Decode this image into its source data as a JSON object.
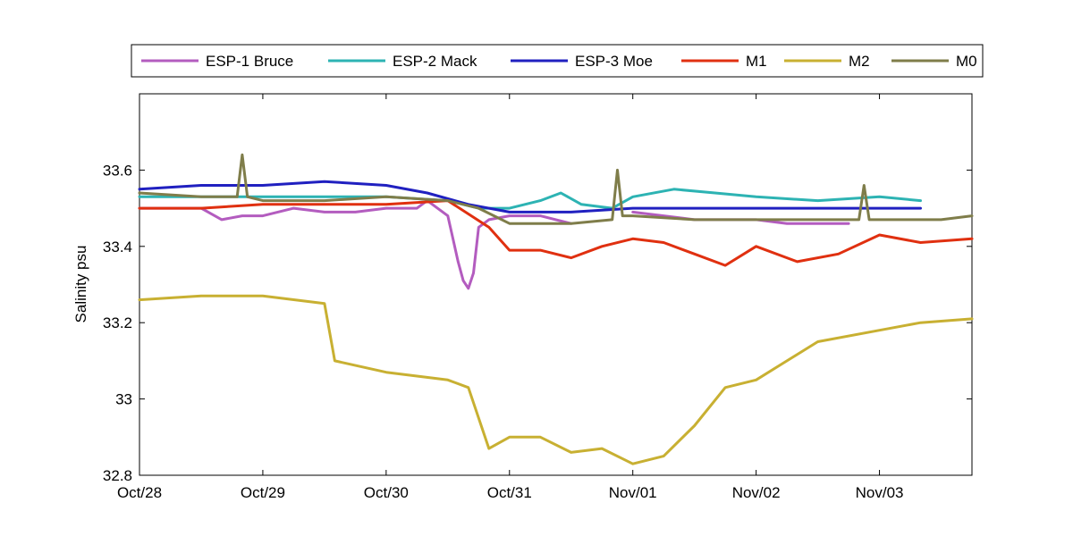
{
  "chart_data": {
    "type": "line",
    "title": "",
    "xlabel": "",
    "ylabel": "Salinity psu",
    "x_range": [
      "2010-10-28 00:00",
      "2010-11-03 18:00"
    ],
    "xticks": [
      {
        "x": "2010-10-28",
        "label": "Oct/28"
      },
      {
        "x": "2010-10-29",
        "label": "Oct/29"
      },
      {
        "x": "2010-10-30",
        "label": "Oct/30"
      },
      {
        "x": "2010-10-31",
        "label": "Oct/31"
      },
      {
        "x": "2010-11-01",
        "label": "Nov/01"
      },
      {
        "x": "2010-11-02",
        "label": "Nov/02"
      },
      {
        "x": "2010-11-03",
        "label": "Nov/03"
      }
    ],
    "ylim": [
      32.8,
      33.8
    ],
    "yticks": [
      {
        "y": 32.8,
        "label": "32.8"
      },
      {
        "y": 33.0,
        "label": "33"
      },
      {
        "y": 33.2,
        "label": "33.2"
      },
      {
        "y": 33.4,
        "label": "33.4"
      },
      {
        "y": 33.6,
        "label": "33.6"
      }
    ],
    "grid": false,
    "legend_position": "top, outside plot, horizontal",
    "series": [
      {
        "name": "ESP-1 Bruce",
        "color": "#b35cbf",
        "x": [
          "2010-10-28 00:00",
          "2010-10-28 12:00",
          "2010-10-28 16:00",
          "2010-10-28 20:00",
          "2010-10-29 00:00",
          "2010-10-29 06:00",
          "2010-10-29 12:00",
          "2010-10-29 18:00",
          "2010-10-30 00:00",
          "2010-10-30 06:00",
          "2010-10-30 08:00",
          "2010-10-30 12:00",
          "2010-10-30 13:00",
          "2010-10-30 14:00",
          "2010-10-30 15:00",
          "2010-10-30 16:00",
          "2010-10-30 17:00",
          "2010-10-30 18:00",
          "2010-10-30 20:00",
          "2010-10-31 00:00",
          "2010-10-31 06:00",
          "2010-10-31 12:00"
        ],
        "y": [
          33.5,
          33.5,
          33.47,
          33.48,
          33.48,
          33.5,
          33.49,
          33.49,
          33.5,
          33.5,
          33.52,
          33.48,
          33.42,
          33.36,
          33.31,
          33.29,
          33.33,
          33.45,
          33.47,
          33.48,
          33.48,
          33.46
        ]
      },
      {
        "name": "ESP-1 Bruce",
        "color": "#b35cbf",
        "x": [
          "2010-11-01 00:00",
          "2010-11-01 06:00",
          "2010-11-01 12:00",
          "2010-11-01 18:00",
          "2010-11-02 00:00",
          "2010-11-02 06:00",
          "2010-11-02 12:00",
          "2010-11-02 18:00"
        ],
        "y": [
          33.49,
          33.48,
          33.47,
          33.47,
          33.47,
          33.46,
          33.46,
          33.46
        ]
      },
      {
        "name": "ESP-2 Mack",
        "color": "#2db3b3",
        "x": [
          "2010-10-28 00:00",
          "2010-10-28 12:00",
          "2010-10-29 00:00",
          "2010-10-29 12:00",
          "2010-10-30 00:00",
          "2010-10-30 12:00",
          "2010-10-30 18:00",
          "2010-10-31 00:00",
          "2010-10-31 06:00",
          "2010-10-31 10:00",
          "2010-10-31 14:00",
          "2010-10-31 20:00",
          "2010-11-01 00:00",
          "2010-11-01 08:00",
          "2010-11-01 16:00",
          "2010-11-02 00:00",
          "2010-11-02 12:00",
          "2010-11-03 00:00",
          "2010-11-03 08:00"
        ],
        "y": [
          33.53,
          33.53,
          33.53,
          33.53,
          33.53,
          33.52,
          33.5,
          33.5,
          33.52,
          33.54,
          33.51,
          33.5,
          33.53,
          33.55,
          33.54,
          33.53,
          33.52,
          33.53,
          33.52
        ]
      },
      {
        "name": "ESP-3 Moe",
        "color": "#2020c0",
        "x": [
          "2010-10-28 00:00",
          "2010-10-28 12:00",
          "2010-10-29 00:00",
          "2010-10-29 12:00",
          "2010-10-30 00:00",
          "2010-10-30 08:00",
          "2010-10-30 16:00",
          "2010-10-31 00:00",
          "2010-10-31 12:00",
          "2010-11-01 00:00",
          "2010-11-01 12:00",
          "2010-11-02 00:00",
          "2010-11-02 12:00",
          "2010-11-03 00:00",
          "2010-11-03 08:00"
        ],
        "y": [
          33.55,
          33.56,
          33.56,
          33.57,
          33.56,
          33.54,
          33.51,
          33.49,
          33.49,
          33.5,
          33.5,
          33.5,
          33.5,
          33.5,
          33.5
        ]
      },
      {
        "name": "M1",
        "color": "#e03010",
        "x": [
          "2010-10-28 00:00",
          "2010-10-28 12:00",
          "2010-10-29 00:00",
          "2010-10-29 12:00",
          "2010-10-30 00:00",
          "2010-10-30 12:00",
          "2010-10-30 20:00",
          "2010-10-31 00:00",
          "2010-10-31 06:00",
          "2010-10-31 12:00",
          "2010-10-31 18:00",
          "2010-11-01 00:00",
          "2010-11-01 06:00",
          "2010-11-01 12:00",
          "2010-11-01 18:00",
          "2010-11-02 00:00",
          "2010-11-02 08:00",
          "2010-11-02 16:00",
          "2010-11-03 00:00",
          "2010-11-03 08:00",
          "2010-11-03 18:00"
        ],
        "y": [
          33.5,
          33.5,
          33.51,
          33.51,
          33.51,
          33.52,
          33.45,
          33.39,
          33.39,
          33.37,
          33.4,
          33.42,
          33.41,
          33.38,
          33.35,
          33.4,
          33.36,
          33.38,
          33.43,
          33.41,
          33.42
        ]
      },
      {
        "name": "M2",
        "color": "#c8b032",
        "x": [
          "2010-10-28 00:00",
          "2010-10-28 12:00",
          "2010-10-29 00:00",
          "2010-10-29 12:00",
          "2010-10-29 14:00",
          "2010-10-30 00:00",
          "2010-10-30 12:00",
          "2010-10-30 16:00",
          "2010-10-30 20:00",
          "2010-10-31 00:00",
          "2010-10-31 06:00",
          "2010-10-31 12:00",
          "2010-10-31 18:00",
          "2010-11-01 00:00",
          "2010-11-01 06:00",
          "2010-11-01 12:00",
          "2010-11-01 18:00",
          "2010-11-02 00:00",
          "2010-11-02 06:00",
          "2010-11-02 12:00",
          "2010-11-03 00:00",
          "2010-11-03 08:00",
          "2010-11-03 18:00"
        ],
        "y": [
          33.26,
          33.27,
          33.27,
          33.25,
          33.1,
          33.07,
          33.05,
          33.03,
          32.87,
          32.9,
          32.9,
          32.86,
          32.87,
          32.83,
          32.85,
          32.93,
          33.03,
          33.05,
          33.1,
          33.15,
          33.18,
          33.2,
          33.21
        ]
      },
      {
        "name": "M0",
        "color": "#7f7d4a",
        "x": [
          "2010-10-28 00:00",
          "2010-10-28 12:00",
          "2010-10-28 19:00",
          "2010-10-28 20:00",
          "2010-10-28 21:00",
          "2010-10-29 00:00",
          "2010-10-29 12:00",
          "2010-10-30 00:00",
          "2010-10-30 12:00",
          "2010-10-30 18:00",
          "2010-10-31 00:00",
          "2010-10-31 12:00",
          "2010-10-31 20:00",
          "2010-10-31 21:00",
          "2010-10-31 22:00",
          "2010-11-01 00:00",
          "2010-11-01 12:00",
          "2010-11-02 00:00",
          "2010-11-02 12:00",
          "2010-11-02 20:00",
          "2010-11-02 21:00",
          "2010-11-02 22:00",
          "2010-11-03 00:00",
          "2010-11-03 12:00",
          "2010-11-03 18:00"
        ],
        "y": [
          33.54,
          33.53,
          33.53,
          33.64,
          33.53,
          33.52,
          33.52,
          33.53,
          33.52,
          33.5,
          33.46,
          33.46,
          33.47,
          33.6,
          33.48,
          33.48,
          33.47,
          33.47,
          33.47,
          33.47,
          33.56,
          33.47,
          33.47,
          33.47,
          33.48
        ]
      }
    ],
    "legend": [
      {
        "label": "ESP-1 Bruce",
        "color": "#b35cbf"
      },
      {
        "label": "ESP-2 Mack",
        "color": "#2db3b3"
      },
      {
        "label": "ESP-3 Moe",
        "color": "#2020c0"
      },
      {
        "label": "M1",
        "color": "#e03010"
      },
      {
        "label": "M2",
        "color": "#c8b032"
      },
      {
        "label": "M0",
        "color": "#7f7d4a"
      }
    ]
  }
}
